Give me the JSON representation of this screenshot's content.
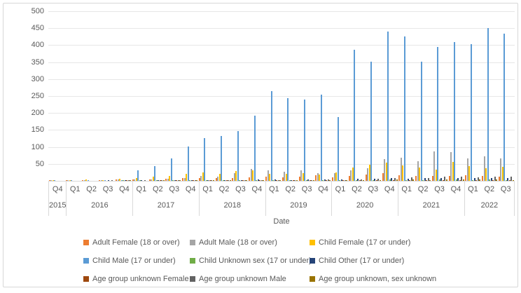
{
  "chart_data": {
    "type": "bar",
    "title": "",
    "xlabel": "Date",
    "ylabel": "",
    "ylim": [
      0,
      500
    ],
    "yticks": [
      50,
      100,
      150,
      200,
      250,
      300,
      350,
      400,
      450,
      500
    ],
    "grid": "horizontal",
    "legend_position": "bottom",
    "axis_line_color": "#d9d9d9",
    "gridline_color": "#e7e7e7",
    "text_color": "#595959",
    "year_groups": [
      {
        "year": "2015",
        "quarters": [
          "Q4"
        ]
      },
      {
        "year": "2016",
        "quarters": [
          "Q1",
          "Q2",
          "Q3",
          "Q4"
        ]
      },
      {
        "year": "2017",
        "quarters": [
          "Q1",
          "Q2",
          "Q3",
          "Q4"
        ]
      },
      {
        "year": "2018",
        "quarters": [
          "Q1",
          "Q2",
          "Q3",
          "Q4"
        ]
      },
      {
        "year": "2019",
        "quarters": [
          "Q1",
          "Q2",
          "Q3",
          "Q4"
        ]
      },
      {
        "year": "2020",
        "quarters": [
          "Q1",
          "Q2",
          "Q3",
          "Q4"
        ]
      },
      {
        "year": "2021",
        "quarters": [
          "Q1",
          "Q2",
          "Q3",
          "Q4"
        ]
      },
      {
        "year": "2022",
        "quarters": [
          "Q1",
          "Q2",
          "Q3"
        ]
      }
    ],
    "series": [
      {
        "name": "Adult Female (18 or over)",
        "color": "#ED7D31",
        "values": [
          1,
          2,
          3,
          3,
          4,
          4,
          5,
          6,
          8,
          8,
          8,
          9,
          10,
          13,
          11,
          12,
          16,
          10,
          15,
          18,
          23,
          16,
          14,
          15,
          15,
          17,
          15,
          13
        ]
      },
      {
        "name": "Adult Male (18 or over)",
        "color": "#A5A5A5",
        "values": [
          1,
          2,
          2,
          3,
          4,
          4,
          5,
          6,
          9,
          15,
          12,
          23,
          35,
          32,
          27,
          30,
          22,
          22,
          32,
          37,
          64,
          68,
          57,
          86,
          85,
          66,
          73,
          66
        ]
      },
      {
        "name": "Child Female (17 or under)",
        "color": "#FFC000",
        "values": [
          1,
          2,
          4,
          3,
          6,
          9,
          12,
          15,
          20,
          25,
          21,
          29,
          31,
          21,
          20,
          22,
          19,
          25,
          40,
          47,
          53,
          45,
          40,
          34,
          56,
          44,
          37,
          41
        ]
      },
      {
        "name": "Child Male (17 or under)",
        "color": "#5B9BD5",
        "values": [
          1,
          1,
          2,
          2,
          3,
          30,
          44,
          66,
          101,
          127,
          133,
          147,
          193,
          264,
          243,
          239,
          255,
          189,
          386,
          352,
          441,
          426,
          352,
          395,
          409,
          402,
          450,
          434
        ]
      },
      {
        "name": "Child Unknown sex (17 or under)",
        "color": "#70AD47",
        "values": [
          0,
          0,
          0,
          0,
          1,
          1,
          1,
          1,
          2,
          1,
          1,
          2,
          2,
          2,
          1,
          2,
          2,
          2,
          3,
          3,
          4,
          3,
          3,
          4,
          4,
          3,
          4,
          3
        ]
      },
      {
        "name": "Child Other (17 or under)",
        "color": "#264478",
        "values": [
          0,
          0,
          0,
          1,
          1,
          1,
          1,
          1,
          2,
          2,
          3,
          3,
          4,
          4,
          3,
          4,
          5,
          4,
          6,
          7,
          8,
          7,
          8,
          8,
          9,
          8,
          9,
          8
        ]
      },
      {
        "name": "Age group unknown Female",
        "color": "#9E480E",
        "values": [
          0,
          0,
          0,
          0,
          1,
          0,
          1,
          1,
          1,
          1,
          1,
          1,
          2,
          2,
          1,
          2,
          2,
          2,
          2,
          3,
          3,
          3,
          2,
          3,
          3,
          3,
          3,
          2
        ]
      },
      {
        "name": "Age group unknown Male",
        "color": "#636363",
        "values": [
          0,
          0,
          0,
          1,
          1,
          1,
          1,
          1,
          2,
          1,
          1,
          2,
          3,
          3,
          2,
          3,
          4,
          3,
          5,
          6,
          9,
          10,
          9,
          12,
          13,
          11,
          12,
          13
        ]
      },
      {
        "name": "Age group unknown, sex unknown",
        "color": "#997300",
        "values": [
          0,
          0,
          0,
          0,
          1,
          0,
          1,
          1,
          1,
          1,
          1,
          1,
          2,
          1,
          1,
          2,
          2,
          2,
          3,
          3,
          4,
          4,
          3,
          4,
          5,
          4,
          4,
          3
        ]
      }
    ]
  }
}
